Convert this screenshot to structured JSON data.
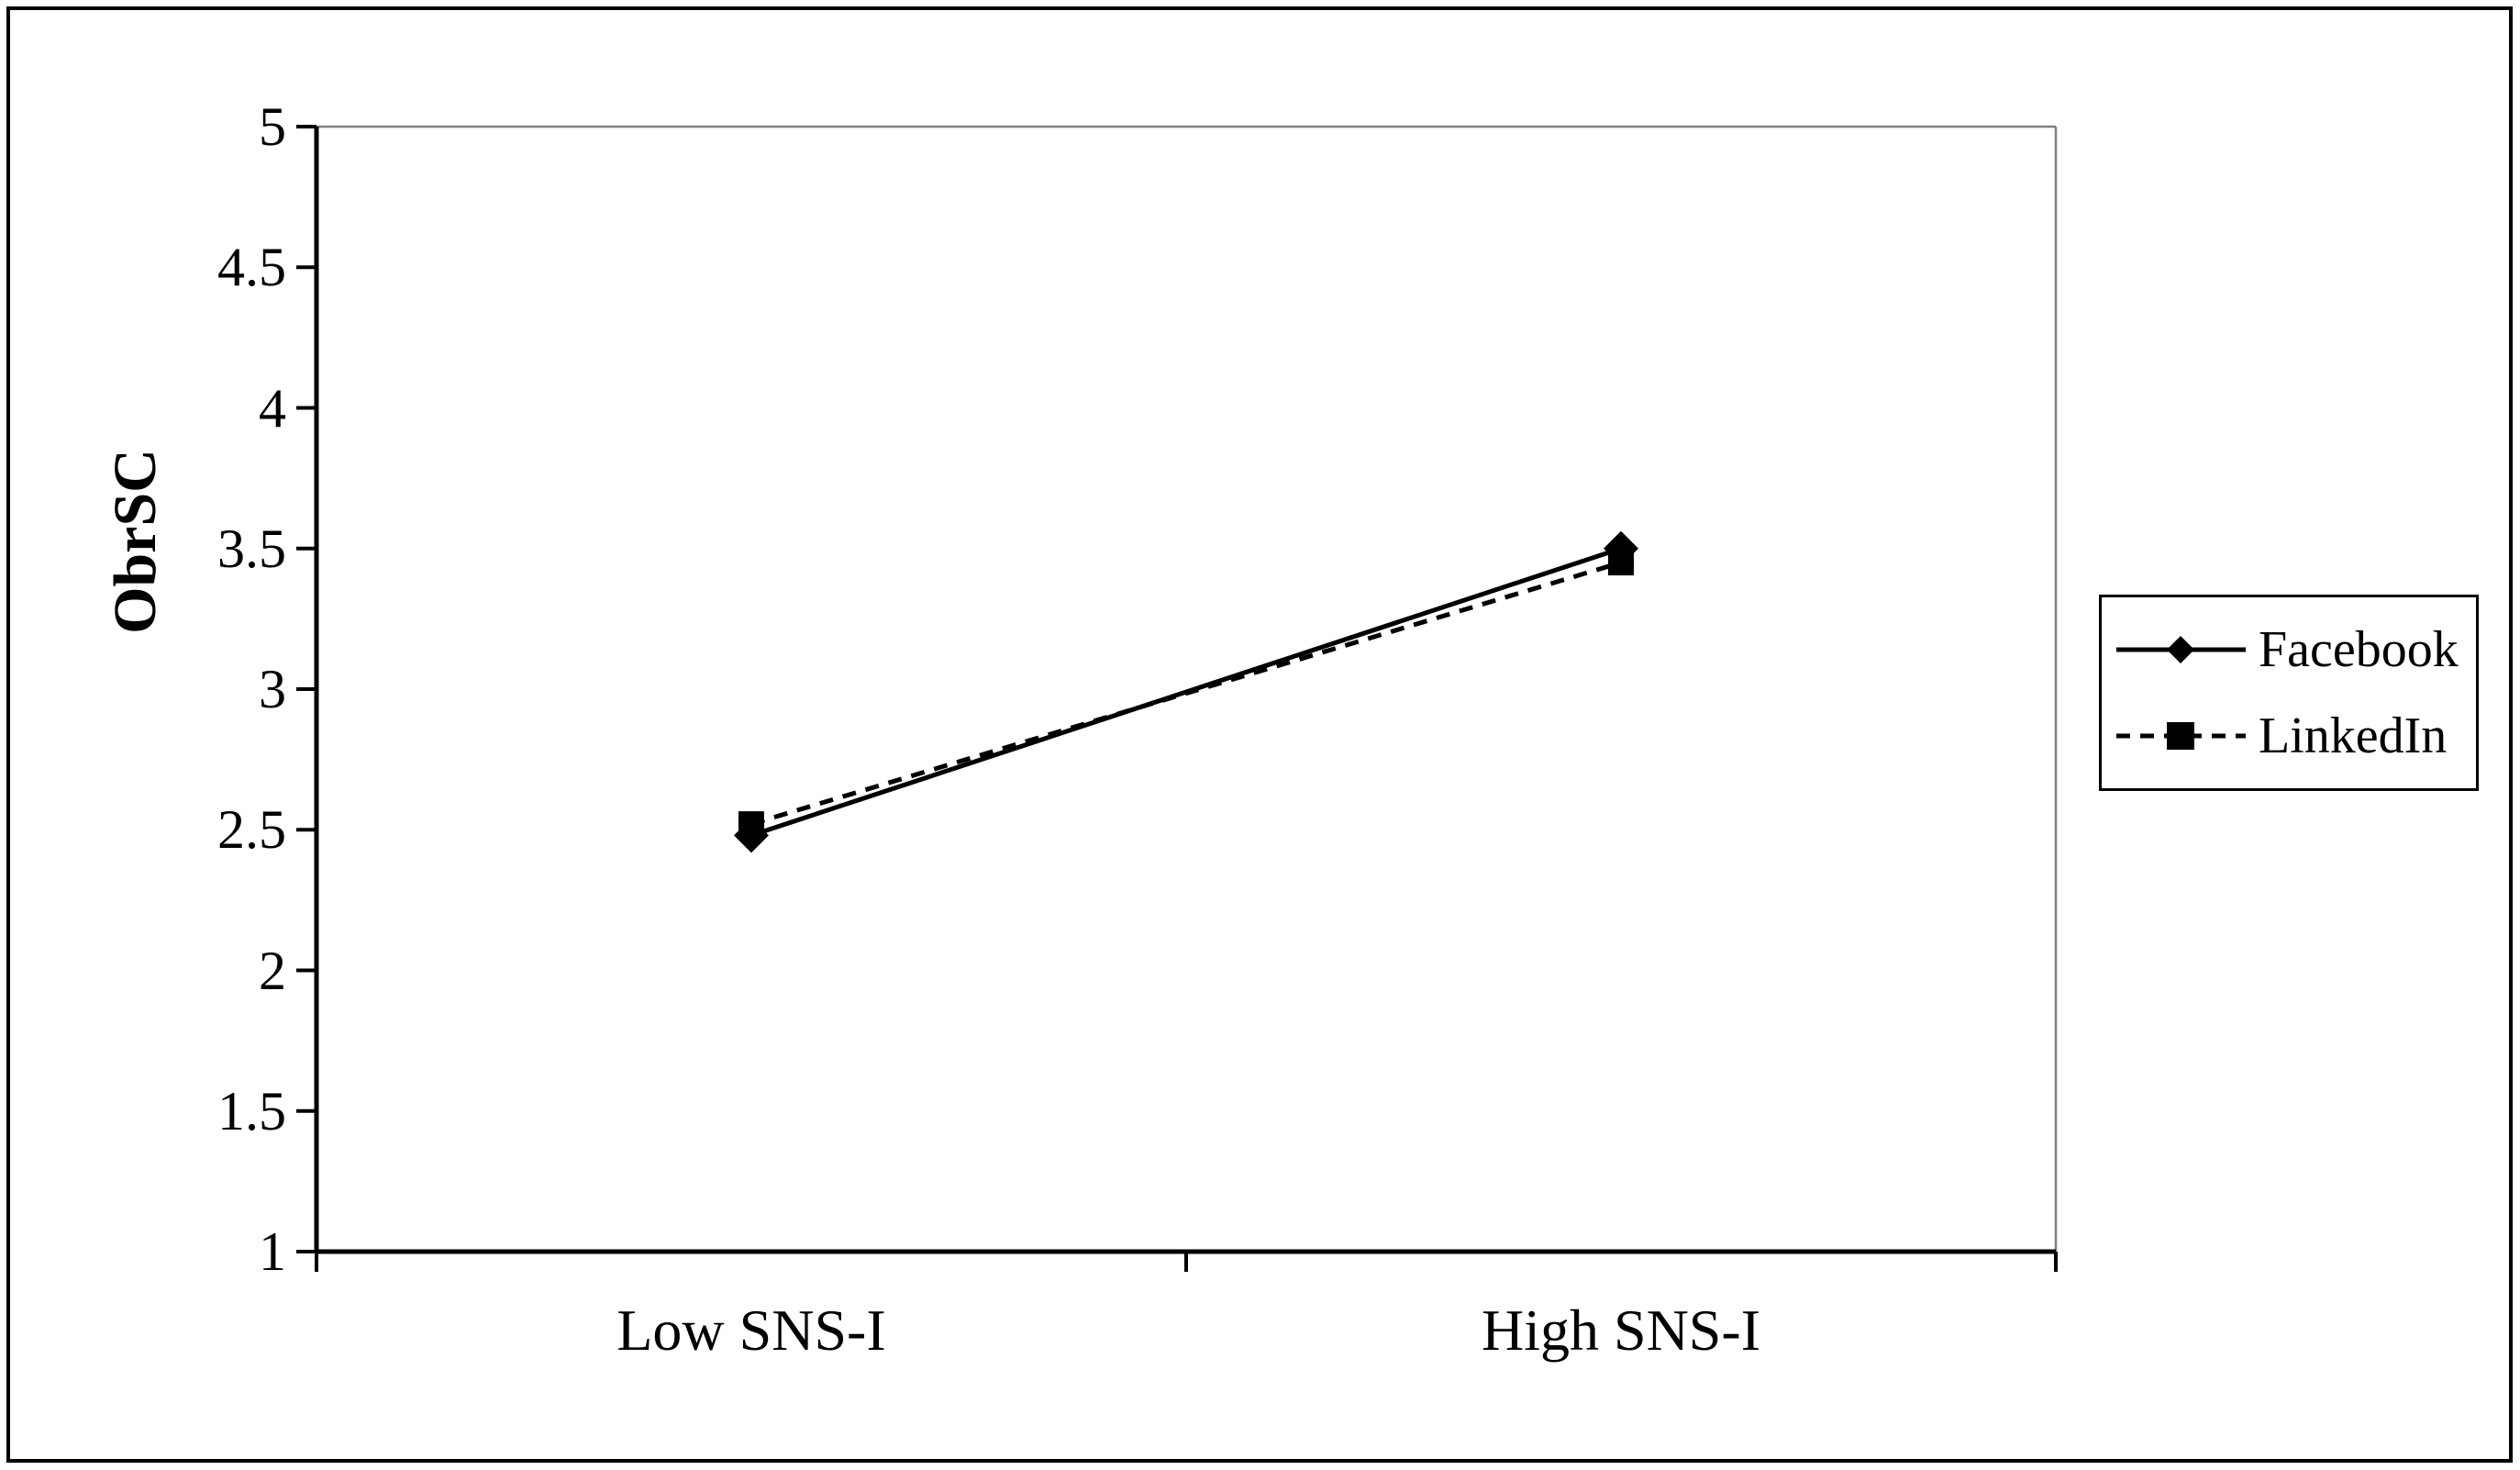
{
  "chart_data": {
    "type": "line",
    "title": "",
    "categories": [
      "Low SNS-I",
      "High SNS-I"
    ],
    "series": [
      {
        "name": "Facebook",
        "values": [
          2.48,
          3.5
        ],
        "line_style": "solid",
        "marker": "diamond",
        "color": "#000000"
      },
      {
        "name": "LinkedIn",
        "values": [
          2.52,
          3.45
        ],
        "line_style": "dashed",
        "marker": "square",
        "color": "#000000"
      }
    ],
    "xlabel": "",
    "ylabel": "ObrSC",
    "ylim": [
      1,
      5
    ],
    "ytick_step": 0.5,
    "yticks": [
      1,
      1.5,
      2,
      2.5,
      3,
      3.5,
      4,
      4.5,
      5
    ],
    "ytick_labels": [
      "1",
      "1.5",
      "2",
      "2.5",
      "3",
      "3.5",
      "4",
      "4.5",
      "5"
    ],
    "grid": false,
    "legend_position": "right"
  },
  "colors": {
    "axis": "#000000",
    "plot_border": "#808080",
    "text": "#000000",
    "background": "#ffffff"
  }
}
